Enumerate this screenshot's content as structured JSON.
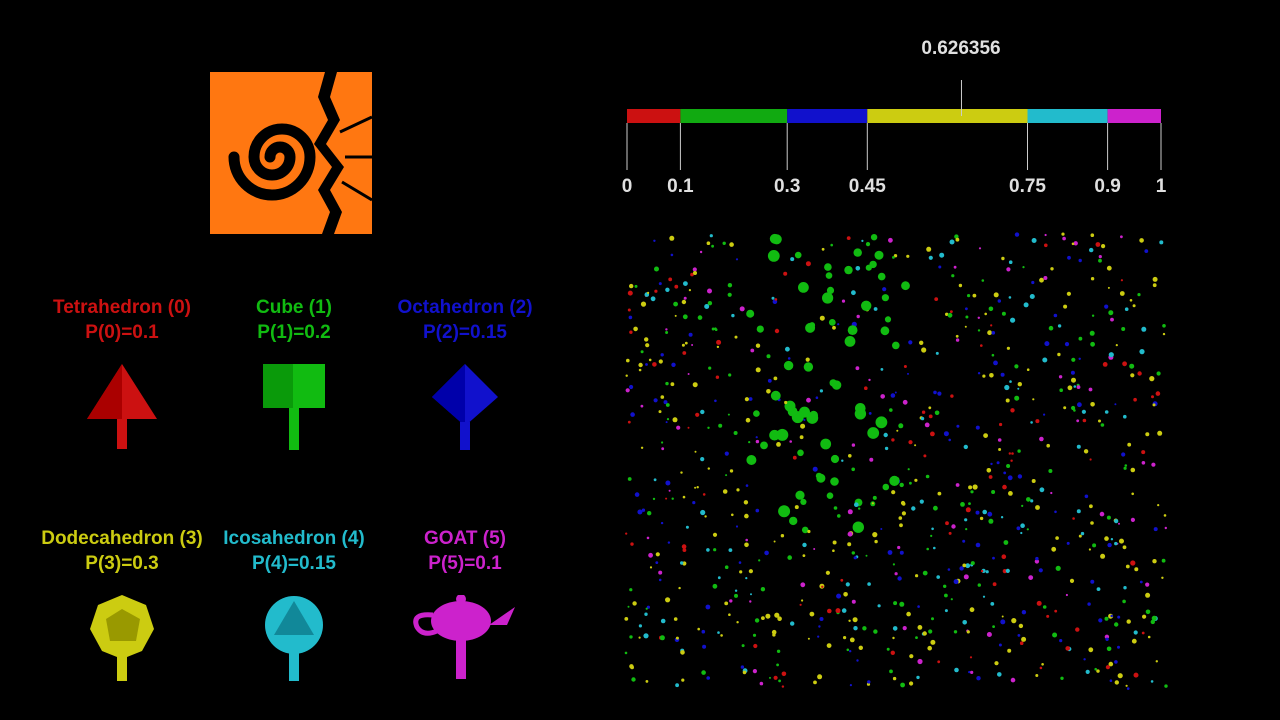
{
  "shapes": [
    {
      "title": "Tetrahedron (0)",
      "prob": "P(0)=0.1",
      "color": "#cc1111",
      "icon": "tetrahedron-icon"
    },
    {
      "title": "Cube (1)",
      "prob": "P(1)=0.2",
      "color": "#11bb11",
      "icon": "cube-icon"
    },
    {
      "title": "Octahedron (2)",
      "prob": "P(2)=0.15",
      "color": "#1111cc",
      "icon": "octahedron-icon"
    },
    {
      "title": "Dodecahedron (3)",
      "prob": "P(3)=0.3",
      "color": "#cccc11",
      "icon": "dodecahedron-icon"
    },
    {
      "title": "Icosahedron (4)",
      "prob": "P(4)=0.15",
      "color": "#22bbcc",
      "icon": "icosahedron-icon"
    },
    {
      "title": "GOAT (5)",
      "prob": "P(5)=0.1",
      "color": "#cc22cc",
      "icon": "teapot-icon"
    }
  ],
  "cdf_bar": {
    "marker_value": "0.626356",
    "ticks": [
      "0",
      "0.1",
      "0.3",
      "0.45",
      "0.75",
      "0.9",
      "1"
    ],
    "segment_colors": [
      "#cc1111",
      "#11aa11",
      "#1111cc",
      "#cccc11",
      "#22bbcc",
      "#cc22cc"
    ]
  },
  "logo": {
    "name": "houdini-logo-icon",
    "color": "#ff7711"
  }
}
